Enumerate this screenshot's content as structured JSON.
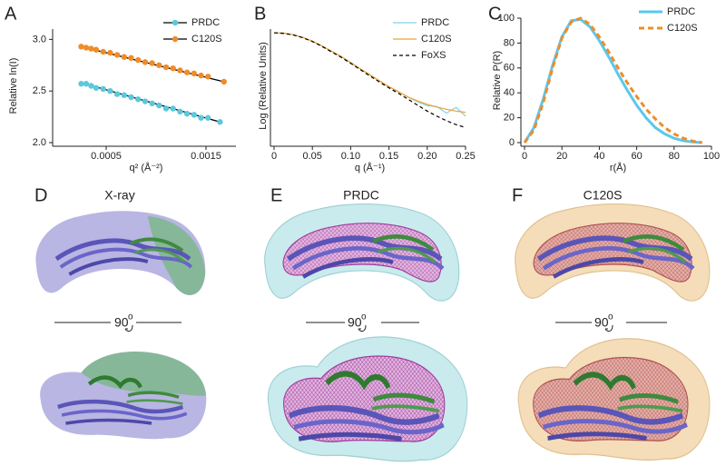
{
  "chart_data": [
    {
      "type": "scatter",
      "panel_label": "A",
      "x_label": "q² (Å⁻²)",
      "y_label": "Relative ln(I)",
      "xlim": [
        0,
        0.0018
      ],
      "ylim": [
        2.0,
        3.1
      ],
      "xticks": [
        0.0005,
        0.0015
      ],
      "yticks": [
        {
          "value": 2.0,
          "label": "2.0"
        },
        {
          "value": 2.5,
          "label": "2.5"
        },
        {
          "value": 3.0,
          "label": "3.0"
        }
      ],
      "legend": "upper right",
      "series": [
        {
          "name": "PRDC",
          "color": "#5bc8dc",
          "x": [
            0.00025,
            0.0003,
            0.00035,
            0.0004,
            0.00047,
            0.00054,
            0.00061,
            0.00068,
            0.00075,
            0.00082,
            0.00089,
            0.00096,
            0.00103,
            0.0011,
            0.00117,
            0.00124,
            0.00131,
            0.00138,
            0.00145,
            0.00152,
            0.00164
          ],
          "values": [
            2.57,
            2.57,
            2.55,
            2.53,
            2.52,
            2.5,
            2.47,
            2.46,
            2.44,
            2.42,
            2.4,
            2.38,
            2.36,
            2.33,
            2.33,
            2.3,
            2.28,
            2.27,
            2.24,
            2.24,
            2.2
          ]
        },
        {
          "name": "C120S",
          "color": "#f08c28",
          "x": [
            0.00025,
            0.0003,
            0.00035,
            0.0004,
            0.00047,
            0.00054,
            0.00061,
            0.00068,
            0.00075,
            0.00082,
            0.00089,
            0.00096,
            0.00103,
            0.0011,
            0.00117,
            0.00124,
            0.00131,
            0.00138,
            0.00145,
            0.00152,
            0.00168
          ],
          "values": [
            2.93,
            2.92,
            2.91,
            2.9,
            2.88,
            2.87,
            2.85,
            2.83,
            2.82,
            2.8,
            2.78,
            2.77,
            2.75,
            2.73,
            2.72,
            2.7,
            2.68,
            2.67,
            2.65,
            2.64,
            2.59
          ]
        }
      ],
      "fit_lines": [
        {
          "color": "#000000",
          "x": [
            0.00025,
            0.00164
          ],
          "values": [
            2.58,
            2.2
          ]
        },
        {
          "color": "#000000",
          "x": [
            0.00025,
            0.00168
          ],
          "values": [
            2.93,
            2.59
          ]
        }
      ]
    },
    {
      "type": "line",
      "panel_label": "B",
      "x_label": "q (Å⁻¹)",
      "y_label": "Log (Relative Units)",
      "xlim": [
        0,
        0.25
      ],
      "ylim": [
        0.001,
        1
      ],
      "y_scale": "log",
      "line_width": 1.2,
      "xticks": [
        0,
        0.05,
        {
          "value": 0.1,
          "label": "0.10"
        },
        0.15,
        {
          "value": 0.2,
          "label": "0.20"
        },
        0.25
      ],
      "legend": "upper right",
      "x": [
        0,
        0.0125,
        0.025,
        0.0375,
        0.05,
        0.0625,
        0.075,
        0.0875,
        0.1,
        0.1125,
        0.125,
        0.1375,
        0.15,
        0.1625,
        0.175,
        0.1875,
        0.2,
        0.2125,
        0.225,
        0.2375,
        0.25
      ],
      "series": [
        {
          "name": "PRDC",
          "color": "#7fd3e8",
          "line_style": "solid",
          "values": [
            0.79,
            0.78,
            0.71,
            0.6,
            0.48,
            0.36,
            0.26,
            0.19,
            0.13,
            0.089,
            0.062,
            0.043,
            0.03,
            0.022,
            0.016,
            0.012,
            0.0095,
            0.009,
            0.006,
            0.0085,
            0.005
          ]
        },
        {
          "name": "C120S",
          "color": "#f0a030",
          "line_style": "solid",
          "values": [
            0.79,
            0.78,
            0.71,
            0.6,
            0.48,
            0.36,
            0.26,
            0.19,
            0.13,
            0.089,
            0.062,
            0.043,
            0.03,
            0.022,
            0.016,
            0.0126,
            0.0102,
            0.0087,
            0.0076,
            0.0068,
            0.0063
          ]
        },
        {
          "name": "FoXS",
          "color": "#000000",
          "line_style": "dashed",
          "values": [
            0.8,
            0.77,
            0.7,
            0.59,
            0.47,
            0.35,
            0.25,
            0.18,
            0.125,
            0.085,
            0.058,
            0.04,
            0.028,
            0.02,
            0.014,
            0.0097,
            0.0068,
            0.005,
            0.0038,
            0.003,
            0.0025
          ]
        }
      ]
    },
    {
      "type": "line",
      "panel_label": "C",
      "x_label": "r(Å)",
      "y_label": "Relative P(R)",
      "xlim": [
        0,
        100
      ],
      "ylim": [
        0,
        100
      ],
      "line_width": 3,
      "xticks": [
        0,
        20,
        40,
        60,
        80,
        100
      ],
      "yticks": [
        0,
        20,
        40,
        60,
        80,
        100
      ],
      "legend": "upper right",
      "x": [
        0,
        5,
        10,
        15,
        20,
        25,
        30,
        35,
        40,
        45,
        50,
        55,
        60,
        65,
        70,
        75,
        80,
        85,
        90,
        95
      ],
      "series": [
        {
          "name": "PRDC",
          "color": "#5bc8ec",
          "line_style": "solid",
          "values": [
            0,
            12,
            35,
            62,
            85,
            98,
            99,
            93,
            82,
            69,
            55,
            42,
            30,
            20,
            12,
            7,
            3.5,
            1.5,
            0.5,
            0
          ]
        },
        {
          "name": "C120S",
          "color": "#f08c28",
          "line_style": "dashed",
          "values": [
            0,
            10,
            32,
            60,
            84,
            97,
            100,
            95,
            85,
            73,
            60,
            48,
            37,
            27,
            19,
            12,
            7,
            3.5,
            1.2,
            0
          ]
        }
      ]
    }
  ],
  "panels": [
    {
      "label": "D",
      "title": "X-ray",
      "rotation": "90",
      "rotation_sup": "o"
    },
    {
      "label": "E",
      "title": "PRDC",
      "rotation": "90",
      "rotation_sup": "o"
    },
    {
      "label": "F",
      "title": "C120S",
      "rotation": "90",
      "rotation_sup": "o"
    }
  ]
}
